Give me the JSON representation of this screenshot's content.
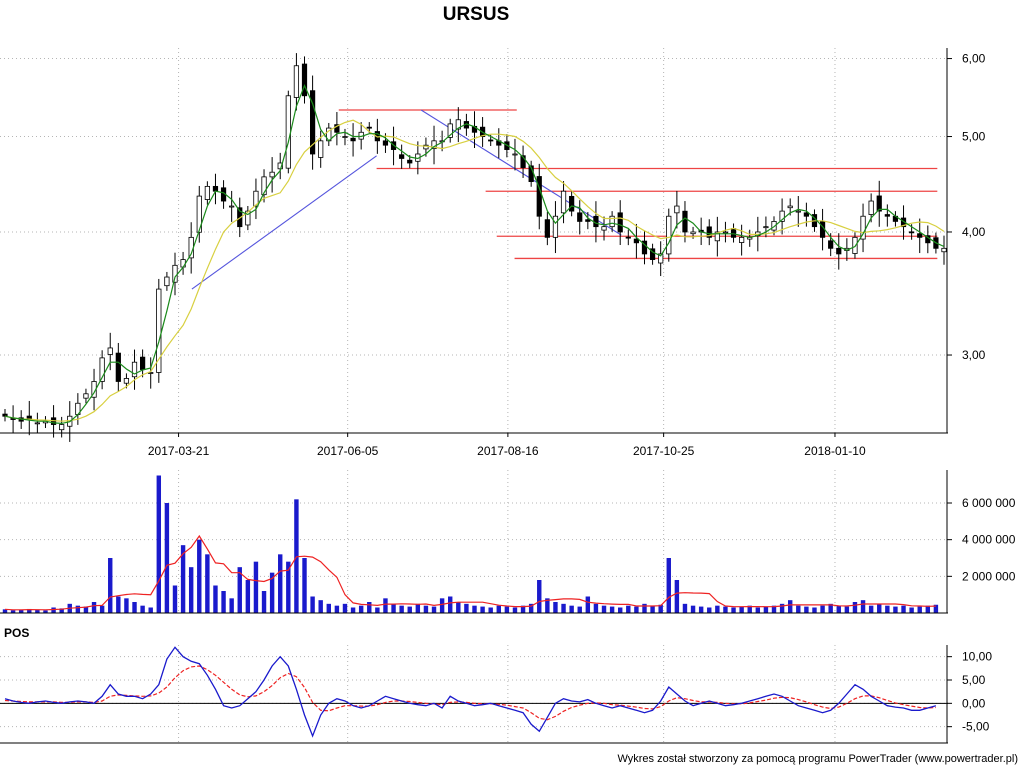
{
  "title": "URSUS",
  "footer": "Wykres został stworzony za pomocą programu PowerTrader (www.powertrader.pl)",
  "chart_data": [
    {
      "panel": "price",
      "type": "candlestick",
      "x_ticks": [
        "2017-03-21",
        "2017-06-05",
        "2017-08-16",
        "2017-10-25",
        "2018-01-10"
      ],
      "y_ticks": [
        "3,00",
        "4,00",
        "5,00",
        "6,00"
      ],
      "y_scale": "log",
      "ylim": [
        2.5,
        6.15
      ],
      "grid": true,
      "colors": {
        "ma_fast": "#1a8a1a",
        "ma_slow": "#d8d040",
        "trendline": "#5555dd",
        "level": "#ee4444"
      },
      "series": [
        {
          "type": "close",
          "values": [
            2.6,
            2.58,
            2.57,
            2.58,
            2.56,
            2.57,
            2.55,
            2.55,
            2.6,
            2.68,
            2.74,
            2.82,
            2.98,
            3.05,
            2.82,
            2.84,
            2.95,
            2.9,
            2.88,
            3.5,
            3.6,
            3.7,
            3.75,
            3.95,
            4.35,
            4.45,
            4.4,
            4.3,
            4.25,
            4.05,
            4.2,
            4.4,
            4.55,
            4.6,
            4.7,
            5.5,
            5.9,
            5.5,
            4.8,
            4.95,
            5.1,
            5.05,
            5.0,
            4.95,
            5.05,
            5.1,
            4.95,
            4.9,
            4.85,
            4.75,
            4.7,
            4.8,
            4.9,
            4.95,
            4.95,
            5.15,
            5.2,
            5.1,
            5.05,
            5.0,
            4.95,
            4.9,
            4.85,
            4.8,
            4.65,
            4.5,
            4.15,
            3.95,
            4.15,
            4.4,
            4.2,
            4.1,
            4.1,
            4.05,
            4.05,
            4.15,
            4.0,
            3.95,
            3.9,
            3.8,
            3.75,
            3.8,
            4.15,
            4.25,
            4.0,
            4.0,
            4.0,
            3.95,
            4.0,
            4.0,
            3.95,
            3.95,
            3.95,
            4.0,
            4.05,
            4.1,
            4.2,
            4.25,
            4.2,
            4.15,
            4.05,
            3.95,
            3.85,
            3.8,
            3.85,
            3.95,
            4.15,
            4.3,
            4.2,
            4.15,
            4.1,
            4.05,
            4.0,
            3.95,
            3.9,
            3.85,
            3.85
          ]
        },
        {
          "type": "moving_average",
          "role": "fast"
        },
        {
          "type": "moving_average",
          "role": "slow"
        }
      ],
      "annotations": {
        "trendlines": [
          {
            "from": [
              "2017-03-27",
              3.5
            ],
            "to": [
              "2017-06-18",
              4.78
            ]
          },
          {
            "from": [
              "2017-07-08",
              5.32
            ],
            "to": [
              "2017-10-06",
              3.97
            ]
          }
        ],
        "levels": [
          {
            "value": 5.32,
            "from": "2017-06-01",
            "to": "2017-08-20"
          },
          {
            "value": 4.64,
            "from": "2017-06-18",
            "to": "2018-02-25"
          },
          {
            "value": 4.4,
            "from": "2017-08-06",
            "to": "2018-02-25"
          },
          {
            "value": 3.96,
            "from": "2017-08-11",
            "to": "2018-02-25"
          },
          {
            "value": 3.76,
            "from": "2017-08-19",
            "to": "2018-02-25"
          }
        ]
      }
    },
    {
      "panel": "volume",
      "type": "bar",
      "y_ticks": [
        "2 000 000",
        "4 000 000",
        "6 000 000"
      ],
      "ylim": [
        0,
        7800000
      ],
      "colors": {
        "bars": "#1a1acc",
        "average": "#ee2222"
      },
      "values": [
        200000,
        150000,
        180000,
        220000,
        160000,
        140000,
        300000,
        250000,
        500000,
        400000,
        350000,
        600000,
        400000,
        3000000,
        900000,
        800000,
        600000,
        400000,
        300000,
        7500000,
        6000000,
        1500000,
        3700000,
        2500000,
        4000000,
        3200000,
        1500000,
        1200000,
        800000,
        2500000,
        1800000,
        2800000,
        1200000,
        2200000,
        3200000,
        2800000,
        6200000,
        3000000,
        900000,
        700000,
        500000,
        400000,
        500000,
        300000,
        400000,
        600000,
        300000,
        800000,
        500000,
        400000,
        350000,
        500000,
        400000,
        350000,
        800000,
        900000,
        600000,
        500000,
        400000,
        350000,
        300000,
        400000,
        350000,
        300000,
        400000,
        500000,
        1800000,
        800000,
        600000,
        500000,
        400000,
        350000,
        900000,
        500000,
        400000,
        350000,
        300000,
        400000,
        350000,
        500000,
        400000,
        450000,
        3000000,
        1800000,
        500000,
        400000,
        350000,
        300000,
        400000,
        350000,
        300000,
        350000,
        400000,
        300000,
        350000,
        400000,
        500000,
        700000,
        400000,
        350000,
        300000,
        400000,
        500000,
        400000,
        350000,
        600000,
        700000,
        400000,
        500000,
        400000,
        350000,
        400000,
        300000,
        350000,
        400000,
        450000
      ]
    },
    {
      "panel": "indicator",
      "type": "line",
      "label": "POS",
      "y_ticks": [
        "10,00",
        "5,00",
        "0,00",
        "-5,00"
      ],
      "ylim": [
        -8.5,
        12.5
      ],
      "colors": {
        "main": "#1a1acc",
        "signal": "#ee2222"
      },
      "series": [
        {
          "role": "main",
          "values": [
            1,
            0.5,
            0.2,
            0,
            0.3,
            0.5,
            0.2,
            0,
            0.3,
            0.5,
            0.3,
            0,
            1.5,
            4.0,
            2.0,
            1.5,
            1.5,
            1.0,
            2.0,
            4.0,
            9.5,
            12.0,
            10.0,
            9.0,
            8.5,
            6.0,
            3.0,
            -0.5,
            -1.0,
            -0.5,
            1.0,
            2.5,
            5.0,
            8.0,
            10.0,
            8.0,
            3.0,
            -2.5,
            -7.0,
            -2.5,
            0,
            1.0,
            0.5,
            -0.5,
            -1.0,
            -0.5,
            0.5,
            1.5,
            1.0,
            0.5,
            0,
            -0.3,
            -0.5,
            0,
            -1.0,
            1.5,
            0.5,
            0,
            -0.5,
            -0.3,
            0,
            -0.5,
            -1.0,
            -1.5,
            -2.0,
            -4.5,
            -6.0,
            -3.0,
            0,
            1.0,
            0.5,
            0.3,
            0.8,
            0,
            -0.5,
            -1.0,
            -0.5,
            -1.0,
            -1.5,
            -2.0,
            -1.5,
            0.5,
            3.5,
            2.0,
            0.5,
            -0.5,
            0,
            0.5,
            0,
            -0.5,
            -0.3,
            0,
            0.5,
            1.0,
            1.5,
            2.0,
            1.5,
            0.5,
            -0.5,
            -1.0,
            -1.5,
            -2.0,
            -1.5,
            0,
            2.0,
            4.0,
            3.0,
            1.5,
            0.5,
            -0.5,
            -0.8,
            -1.0,
            -1.5,
            -1.5,
            -1.0,
            -0.5
          ]
        },
        {
          "role": "signal",
          "values": [
            0.6,
            0.5,
            0.4,
            0.3,
            0.3,
            0.3,
            0.3,
            0.2,
            0.2,
            0.3,
            0.3,
            0.2,
            0.5,
            1.5,
            1.8,
            1.7,
            1.6,
            1.5,
            1.6,
            2.2,
            3.5,
            5.5,
            7.0,
            7.8,
            8.0,
            7.2,
            6.0,
            4.5,
            3.0,
            1.8,
            1.4,
            1.6,
            2.5,
            3.8,
            5.5,
            6.4,
            5.7,
            3.4,
            0.2,
            -1.5,
            -1.6,
            -1.0,
            -0.5,
            -0.5,
            -0.6,
            -0.6,
            -0.3,
            0.2,
            0.5,
            0.5,
            0.4,
            0.2,
            0,
            -0.1,
            -0.3,
            0.2,
            0.3,
            0.2,
            0,
            -0.1,
            -0.1,
            -0.2,
            -0.4,
            -0.7,
            -1.0,
            -2.0,
            -3.2,
            -3.5,
            -2.8,
            -1.7,
            -0.9,
            -0.4,
            0,
            0.1,
            0,
            -0.3,
            -0.4,
            -0.6,
            -0.8,
            -1.1,
            -1.2,
            -0.7,
            0.5,
            1.2,
            1.0,
            0.6,
            0.3,
            0.3,
            0.2,
            0,
            -0.1,
            -0.1,
            0.1,
            0.4,
            0.7,
            1.1,
            1.3,
            1.2,
            0.8,
            0.3,
            -0.3,
            -0.8,
            -1.1,
            -0.8,
            0,
            1.0,
            1.6,
            1.6,
            1.2,
            0.6,
            0.1,
            -0.3,
            -0.6,
            -0.9,
            -1.0,
            -0.9
          ]
        }
      ]
    }
  ]
}
